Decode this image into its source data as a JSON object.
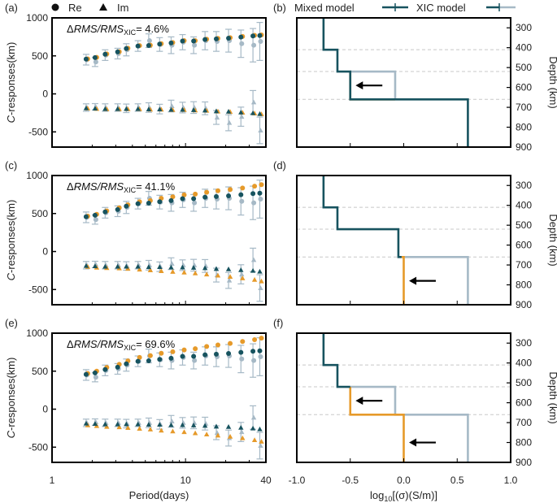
{
  "chart_data": [
    {
      "type": "scatter",
      "panel": "(a)",
      "annotation_prefix": "ΔRMS/RMS",
      "annotation_sub": "XIC",
      "annotation_value": "= 4.6%",
      "legend": {
        "re": "Re",
        "im": "Im"
      },
      "xlim": [
        1,
        40
      ],
      "ylim": [
        -700,
        1000
      ],
      "x": [
        1.8,
        2.1,
        2.5,
        3.1,
        3.6,
        4.4,
        5.3,
        6.4,
        7.8,
        9.5,
        11.5,
        14,
        17,
        21,
        26,
        32,
        36
      ],
      "series": [
        {
          "name": "obs_re",
          "values": [
            450,
            420,
            510,
            530,
            580,
            630,
            700,
            650,
            640,
            680,
            640,
            700,
            690,
            700,
            660,
            640,
            690
          ]
        },
        {
          "name": "obs_im",
          "values": [
            -180,
            -170,
            -180,
            -180,
            -190,
            -180,
            -180,
            -200,
            -160,
            -180,
            -180,
            -190,
            -310,
            -380,
            -300,
            -110,
            -480
          ]
        },
        {
          "name": "xic_re",
          "values": [
            460,
            480,
            525,
            555,
            600,
            635,
            640,
            660,
            675,
            700,
            700,
            720,
            730,
            740,
            755,
            770,
            775
          ]
        },
        {
          "name": "xic_im",
          "values": [
            -190,
            -195,
            -200,
            -200,
            -200,
            -200,
            -205,
            -205,
            -210,
            -210,
            -215,
            -220,
            -230,
            -235,
            -245,
            -255,
            -265
          ]
        },
        {
          "name": "mix_re",
          "values": [
            458,
            478,
            522,
            552,
            596,
            630,
            636,
            655,
            670,
            695,
            695,
            715,
            723,
            733,
            748,
            762,
            767
          ]
        },
        {
          "name": "mix_im",
          "values": [
            -188,
            -192,
            -197,
            -197,
            -197,
            -197,
            -202,
            -202,
            -207,
            -207,
            -212,
            -217,
            -227,
            -232,
            -242,
            -252,
            -262
          ]
        }
      ],
      "errors": [
        70,
        60,
        70,
        70,
        80,
        70,
        90,
        90,
        110,
        100,
        110,
        120,
        130,
        150,
        180,
        220,
        250
      ],
      "xlabel": "",
      "ylabel": "C-responses(km)"
    },
    {
      "type": "scatter",
      "panel": "(c)",
      "annotation_prefix": "ΔRMS/RMS",
      "annotation_sub": "XIC",
      "annotation_value": "= 41.1%",
      "xlim": [
        1,
        40
      ],
      "ylim": [
        -700,
        1000
      ],
      "x": [
        1.8,
        2.1,
        2.5,
        3.1,
        3.6,
        4.4,
        5.3,
        6.4,
        7.8,
        9.5,
        11.5,
        14,
        17,
        21,
        26,
        32,
        36
      ],
      "series": [
        {
          "name": "obs_re",
          "values": [
            450,
            420,
            510,
            530,
            580,
            630,
            700,
            650,
            640,
            680,
            640,
            700,
            690,
            700,
            660,
            640,
            690
          ]
        },
        {
          "name": "obs_im",
          "values": [
            -180,
            -170,
            -180,
            -180,
            -190,
            -180,
            -180,
            -200,
            -160,
            -180,
            -180,
            -190,
            -310,
            -380,
            -300,
            -110,
            -480
          ]
        },
        {
          "name": "xic_re",
          "values": [
            465,
            490,
            535,
            575,
            615,
            655,
            670,
            700,
            720,
            745,
            755,
            780,
            800,
            815,
            835,
            860,
            880
          ]
        },
        {
          "name": "xic_im",
          "values": [
            -200,
            -210,
            -215,
            -220,
            -225,
            -235,
            -245,
            -255,
            -265,
            -275,
            -285,
            -300,
            -315,
            -330,
            -350,
            -370,
            -390
          ]
        },
        {
          "name": "mix_re",
          "values": [
            458,
            478,
            522,
            552,
            596,
            630,
            636,
            655,
            670,
            695,
            695,
            715,
            723,
            733,
            748,
            762,
            767
          ]
        },
        {
          "name": "mix_im",
          "values": [
            -188,
            -192,
            -197,
            -197,
            -197,
            -197,
            -202,
            -202,
            -207,
            -207,
            -212,
            -217,
            -227,
            -232,
            -242,
            -252,
            -262
          ]
        }
      ],
      "errors": [
        70,
        60,
        70,
        70,
        80,
        70,
        90,
        90,
        110,
        100,
        110,
        120,
        130,
        150,
        180,
        220,
        250
      ],
      "xlabel": "",
      "ylabel": "C-responses(km)"
    },
    {
      "type": "scatter",
      "panel": "(e)",
      "annotation_prefix": "ΔRMS/RMS",
      "annotation_sub": "XIC",
      "annotation_value": "= 69.6%",
      "xlim": [
        1,
        40
      ],
      "ylim": [
        -700,
        1000
      ],
      "x": [
        1.8,
        2.1,
        2.5,
        3.1,
        3.6,
        4.4,
        5.3,
        6.4,
        7.8,
        9.5,
        11.5,
        14,
        17,
        21,
        26,
        32,
        36
      ],
      "series": [
        {
          "name": "obs_re",
          "values": [
            450,
            420,
            510,
            530,
            580,
            630,
            700,
            650,
            640,
            680,
            640,
            700,
            690,
            700,
            660,
            640,
            690
          ]
        },
        {
          "name": "obs_im",
          "values": [
            -180,
            -170,
            -180,
            -180,
            -190,
            -180,
            -180,
            -200,
            -160,
            -180,
            -180,
            -190,
            -310,
            -380,
            -300,
            -110,
            -480
          ]
        },
        {
          "name": "xic_re",
          "values": [
            470,
            500,
            550,
            590,
            635,
            680,
            705,
            735,
            755,
            780,
            795,
            825,
            845,
            865,
            890,
            915,
            935
          ]
        },
        {
          "name": "xic_im",
          "values": [
            -210,
            -220,
            -230,
            -235,
            -245,
            -255,
            -265,
            -280,
            -290,
            -300,
            -315,
            -330,
            -345,
            -360,
            -380,
            -405,
            -425
          ]
        },
        {
          "name": "mix_re",
          "values": [
            458,
            478,
            522,
            552,
            596,
            630,
            636,
            655,
            670,
            695,
            695,
            715,
            723,
            733,
            748,
            762,
            767
          ]
        },
        {
          "name": "mix_im",
          "values": [
            -188,
            -192,
            -197,
            -197,
            -197,
            -197,
            -202,
            -202,
            -207,
            -207,
            -212,
            -217,
            -227,
            -232,
            -242,
            -252,
            -262
          ]
        }
      ],
      "errors": [
        70,
        60,
        70,
        70,
        80,
        70,
        90,
        90,
        110,
        100,
        110,
        120,
        130,
        150,
        180,
        220,
        250
      ],
      "xlabel": "Period(days)",
      "ylabel": "C-responses(km)"
    },
    {
      "type": "line",
      "panel": "(b)",
      "legend": {
        "mixed": "Mixed model",
        "xic": "XIC model"
      },
      "xlim": [
        -1,
        1
      ],
      "ylim": [
        250,
        900
      ],
      "ylabel": "Depth (km)",
      "series": [
        {
          "name": "mixed",
          "points": [
            [
              -0.75,
              250
            ],
            [
              -0.75,
              410
            ],
            [
              -0.62,
              410
            ],
            [
              -0.62,
              520
            ],
            [
              -0.5,
              520
            ],
            [
              -0.5,
              660
            ],
            [
              0.6,
              660
            ],
            [
              0.6,
              900
            ]
          ]
        },
        {
          "name": "xic_gray",
          "points": [
            [
              -0.5,
              520
            ],
            [
              -0.08,
              520
            ],
            [
              -0.08,
              660
            ]
          ]
        },
        {
          "name": "xic_orange",
          "points": [
            [
              -0.5,
              520
            ],
            [
              -0.5,
              660
            ],
            [
              -0.08,
              660
            ]
          ]
        }
      ],
      "dashed_depths": [
        410,
        520,
        660
      ],
      "arrows": [
        {
          "depth": 590
        }
      ]
    },
    {
      "type": "line",
      "panel": "(d)",
      "xlim": [
        -1,
        1
      ],
      "ylim": [
        250,
        900
      ],
      "ylabel": "Depth (km)",
      "series": [
        {
          "name": "mixed",
          "points": [
            [
              -0.75,
              250
            ],
            [
              -0.75,
              410
            ],
            [
              -0.62,
              410
            ],
            [
              -0.62,
              520
            ],
            [
              -0.05,
              520
            ],
            [
              -0.05,
              660
            ],
            [
              -0.02,
              660
            ]
          ]
        },
        {
          "name": "xic_gray",
          "points": [
            [
              -0.02,
              660
            ],
            [
              0.6,
              660
            ],
            [
              0.6,
              900
            ]
          ]
        },
        {
          "name": "xic_orange",
          "points": [
            [
              -0.02,
              660
            ],
            [
              0,
              660
            ],
            [
              0,
              900
            ]
          ]
        }
      ],
      "dashed_depths": [
        410,
        520,
        660
      ],
      "arrows": [
        {
          "depth": 780
        }
      ]
    },
    {
      "type": "line",
      "panel": "(f)",
      "xlim": [
        -1,
        1
      ],
      "ylim": [
        250,
        900
      ],
      "ylabel": "Depth (km)",
      "series": [
        {
          "name": "mixed",
          "points": [
            [
              -0.75,
              250
            ],
            [
              -0.75,
              410
            ],
            [
              -0.62,
              410
            ],
            [
              -0.62,
              520
            ],
            [
              -0.5,
              520
            ]
          ]
        },
        {
          "name": "xic_gray",
          "points": [
            [
              -0.5,
              520
            ],
            [
              -0.08,
              520
            ],
            [
              -0.08,
              660
            ],
            [
              0.6,
              660
            ],
            [
              0.6,
              900
            ]
          ]
        },
        {
          "name": "xic_orange",
          "points": [
            [
              -0.5,
              520
            ],
            [
              -0.5,
              660
            ],
            [
              0,
              660
            ],
            [
              0,
              900
            ]
          ]
        }
      ],
      "dashed_depths": [
        410,
        520,
        660
      ],
      "arrows": [
        {
          "depth": 590
        },
        {
          "depth": 800
        }
      ],
      "xlabel_prefix": "log",
      "xlabel_sub": "10",
      "xlabel_suffix": "[(σ)(S/m)]"
    }
  ],
  "left_xticks": [
    "1",
    "10",
    "40"
  ],
  "left_yticks": [
    "1000",
    "500",
    "0",
    "-500"
  ],
  "right_xticks": [
    "-1.0",
    "-0.5",
    "0.0",
    "0.5",
    "1.0"
  ],
  "right_yticks": [
    "300",
    "400",
    "500",
    "600",
    "700",
    "800",
    "900"
  ],
  "colors": {
    "mixed": "#17535f",
    "xic": "#e69a2a",
    "obs": "#a6b9c6",
    "grid": "#c8c8c8"
  }
}
